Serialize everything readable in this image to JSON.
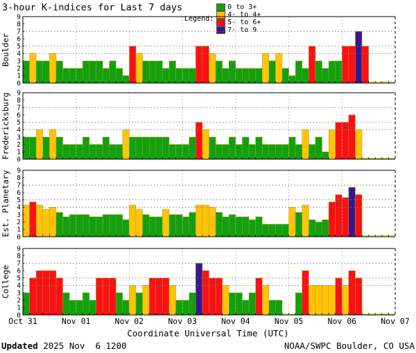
{
  "title": "3-hour K-indices for Last 7 days",
  "legend": {
    "label": "Legend:",
    "items": [
      {
        "label": "0 to 3+",
        "color": "#10A010"
      },
      {
        "label": "4- to 4+",
        "color": "#FFC30B"
      },
      {
        "label": "5- to 6+",
        "color": "#FA0F16"
      },
      {
        "label": "7- to 9",
        "color": "#371591"
      }
    ]
  },
  "xlabel": "Coordinate Universal Time (UTC)",
  "footer": {
    "updated_label": "Updated",
    "updated_value": " 2025 Nov  6 1200",
    "credit": "NOAA/SWPC Boulder, CO USA"
  },
  "chart_data": {
    "type": "bar",
    "title": "3-hour K-indices for Last 7 days",
    "x_day_labels": [
      "Oct 31",
      "Nov 01",
      "Nov 02",
      "Nov 03",
      "Nov 04",
      "Nov 05",
      "Nov 06",
      "Nov 07"
    ],
    "bars_per_day": 8,
    "ylim": [
      0,
      9
    ],
    "yticks": [
      0,
      1,
      2,
      3,
      4,
      5,
      6,
      7,
      8,
      9
    ],
    "threshold_gridlines": [
      4,
      5,
      7
    ],
    "grid": true,
    "legend_position": "top-right",
    "colors": {
      "green": "#10A010",
      "yellow": "#FFC30B",
      "red": "#FA0F16",
      "purple": "#371591",
      "zero_sliver": "#D9DE3C",
      "bar_outline": "#B89F00",
      "gridline": "#808080"
    },
    "color_scale": {
      "green_max": 3.5,
      "yellow_max": 4.5,
      "red_max": 6.5
    },
    "panels": [
      {
        "station": "Boulder",
        "values": [
          3,
          4,
          3,
          3,
          4,
          3,
          2,
          2,
          2,
          3,
          3,
          3,
          2,
          3,
          2,
          1,
          5,
          4,
          3,
          3,
          3,
          2,
          3,
          2,
          2,
          2,
          5,
          5,
          4,
          3,
          2,
          3,
          2,
          2,
          2,
          2,
          4,
          3,
          4,
          2,
          1,
          3,
          2,
          5,
          3,
          2,
          3,
          3,
          5,
          5,
          7,
          5,
          0,
          0,
          0,
          0
        ]
      },
      {
        "station": "Fredericksburg",
        "values": [
          3,
          3,
          4,
          3,
          4,
          3,
          2,
          2,
          2,
          3,
          2,
          2,
          3,
          2,
          2,
          4,
          3,
          3,
          3,
          3,
          3,
          3,
          2,
          2,
          2,
          3,
          5,
          4,
          3,
          2,
          2,
          3,
          2,
          3,
          2,
          3,
          2,
          2,
          2,
          2,
          3,
          2,
          4,
          2,
          3,
          1,
          4,
          5,
          5,
          6,
          4,
          0,
          0,
          0,
          0,
          0
        ]
      },
      {
        "station": "Est. Planetary",
        "values": [
          4.3,
          4.7,
          4.3,
          3.7,
          4.0,
          3.3,
          2.7,
          3.0,
          3.0,
          3.0,
          2.7,
          2.7,
          3.0,
          3.0,
          3.0,
          2.3,
          4.3,
          3.7,
          3.0,
          2.7,
          2.7,
          3.7,
          3.0,
          3.0,
          2.7,
          3.3,
          4.3,
          4.3,
          4.0,
          3.3,
          2.7,
          3.0,
          2.7,
          2.7,
          2.3,
          2.7,
          1.7,
          1.7,
          1.7,
          1.7,
          4.0,
          3.3,
          4.3,
          2.3,
          2.0,
          2.3,
          4.7,
          5.7,
          5.3,
          6.7,
          5.7,
          0,
          0,
          0,
          0,
          0
        ]
      },
      {
        "station": "College",
        "values": [
          3,
          5,
          6,
          6,
          6,
          5,
          3,
          2,
          2,
          3,
          2,
          5,
          5,
          5,
          3,
          2,
          4,
          3,
          4,
          5,
          5,
          5,
          4,
          2,
          2,
          3,
          7,
          6,
          5,
          5,
          4,
          3,
          3,
          2,
          3,
          5,
          4,
          2,
          2,
          0,
          0,
          3,
          6,
          4,
          4,
          4,
          4,
          5,
          4,
          6,
          5,
          0,
          0,
          0,
          0,
          0
        ]
      }
    ]
  }
}
